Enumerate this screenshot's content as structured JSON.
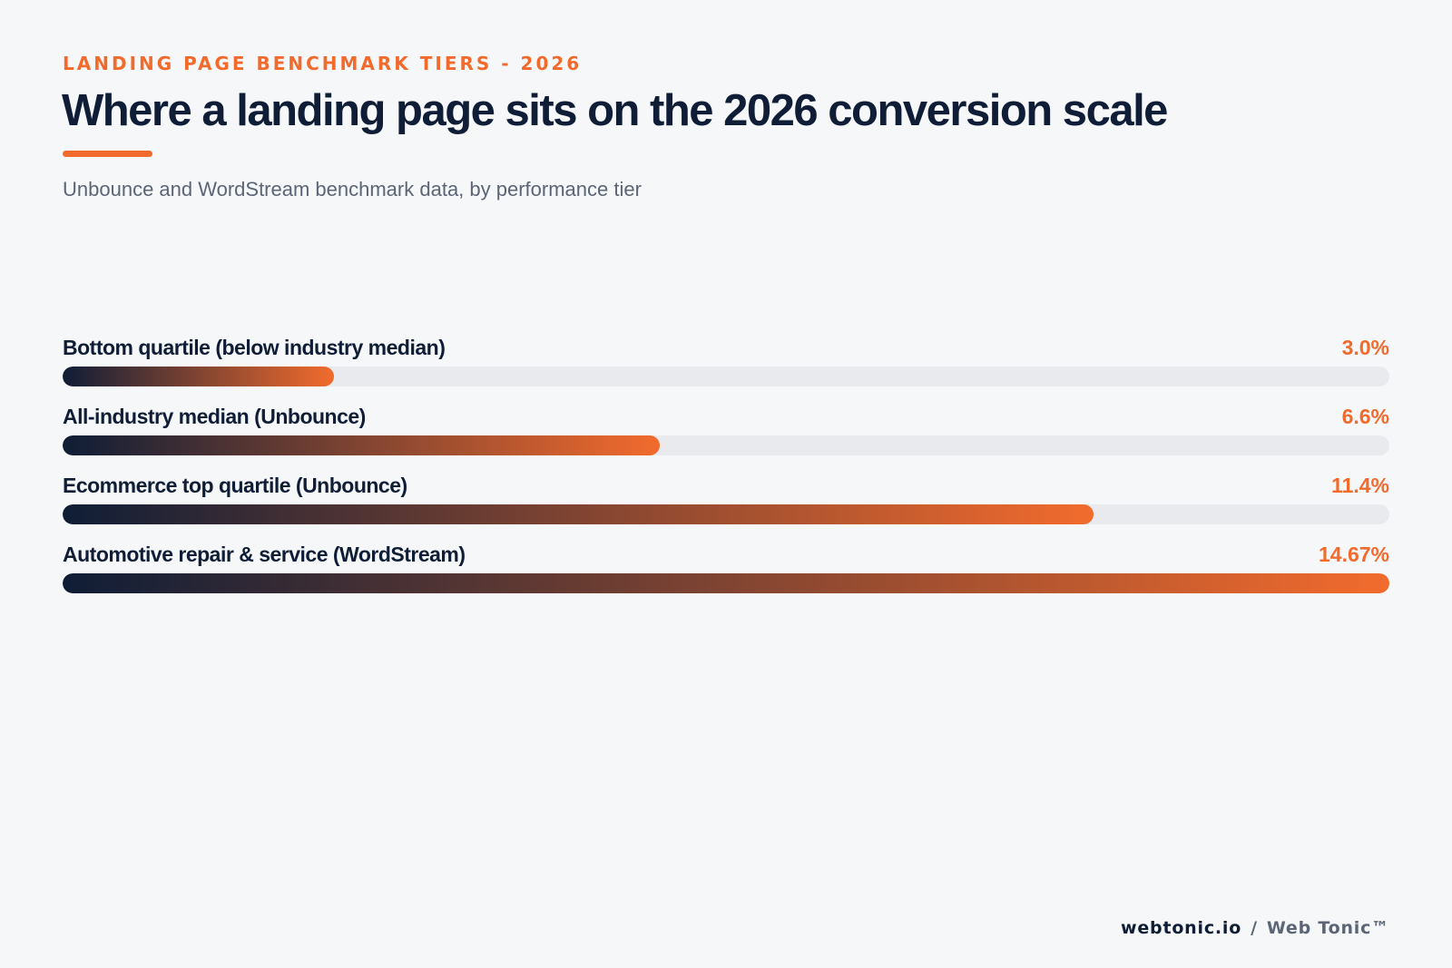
{
  "header": {
    "eyebrow": "LANDING PAGE BENCHMARK TIERS - 2026",
    "title": "Where a landing page sits on the 2026 conversion scale",
    "subtitle": "Unbounce and WordStream benchmark data, by performance tier"
  },
  "colors": {
    "accent": "#f26b2d",
    "navy": "#0f1d36",
    "track": "#e8eaee",
    "muted": "#5b6576",
    "background": "#f6f7f9"
  },
  "chart_data": {
    "type": "bar",
    "orientation": "horizontal",
    "categories": [
      "Bottom quartile (below industry median)",
      "All-industry median (Unbounce)",
      "Ecommerce top quartile (Unbounce)",
      "Automotive repair & service (WordStream)"
    ],
    "values": [
      3.0,
      6.6,
      11.4,
      14.67
    ],
    "value_labels": [
      "3.0%",
      "6.6%",
      "11.4%",
      "14.67%"
    ],
    "xlim": [
      0,
      14.67
    ],
    "grid": false,
    "legend": "none"
  },
  "footer": {
    "domain": "webtonic.io",
    "separator": "/",
    "brand": "Web Tonic™"
  }
}
